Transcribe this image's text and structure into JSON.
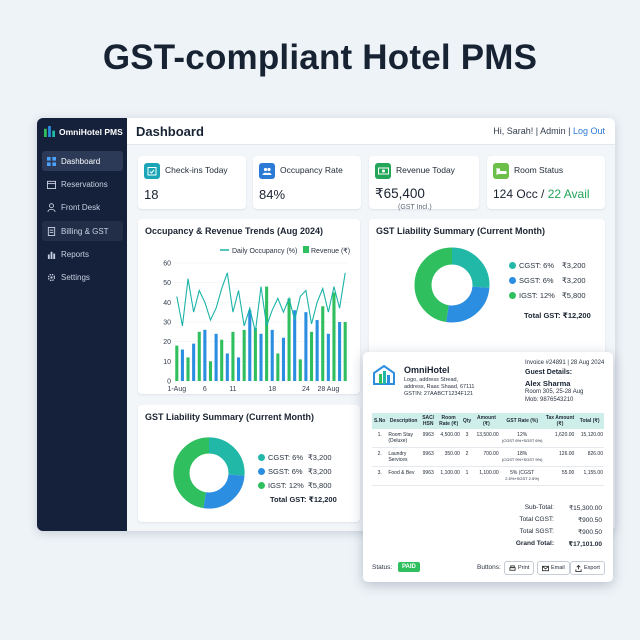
{
  "headline": "GST-compliant Hotel PMS",
  "sidebar": {
    "brand": "OmniHotel PMS",
    "items": [
      {
        "label": "Dashboard",
        "icon": "grid-icon"
      },
      {
        "label": "Reservations",
        "icon": "calendar-icon"
      },
      {
        "label": "Front Desk",
        "icon": "person-icon"
      },
      {
        "label": "Billing & GST",
        "icon": "document-icon"
      },
      {
        "label": "Reports",
        "icon": "bar-chart-icon"
      },
      {
        "label": "Settings",
        "icon": "gear-icon"
      }
    ]
  },
  "header": {
    "title": "Dashboard",
    "greeting": "Hi, Sarah!",
    "sep1": " | ",
    "role": "Admin",
    "sep2": " | ",
    "logout": "Log Out"
  },
  "kpis": [
    {
      "label": "Check-ins Today",
      "value": "18",
      "icon": "calendar-check-icon",
      "color": "#1aa6b7"
    },
    {
      "label": "Occupancy Rate",
      "value": "84%",
      "icon": "people-icon",
      "color": "#2b7ad6"
    },
    {
      "label": "Revenue Today",
      "value": "₹65,400",
      "sub": "(GST Incl.)",
      "icon": "cash-icon",
      "color": "#23a55a"
    },
    {
      "label": "Room Status",
      "value_occ": "124 Occ",
      "value_sep": " / ",
      "value_avail": "22 Avail",
      "icon": "bed-icon",
      "color": "#6cc04a"
    }
  ],
  "trend_card": {
    "title": "Occupancy & Revenue Trends (Aug 2024)"
  },
  "gst_card_top": {
    "title": "GST Liability Summary (Current Month)"
  },
  "gst_card_bottom": {
    "title": "GST Liability Summary (Current Month)"
  },
  "gst": {
    "rows": [
      {
        "label": "CGST: 6%",
        "value": "₹3,200",
        "color": "#22b8a8"
      },
      {
        "label": "SGST: 6%",
        "value": "₹3,200",
        "color": "#2b8ee0"
      },
      {
        "label": "IGST: 12%",
        "value": "₹5,800",
        "color": "#2fbf5e"
      }
    ],
    "total": "Total GST: ₹12,200"
  },
  "chart_data": {
    "type": "bar",
    "title": "Occupancy & Revenue Trends (Aug 2024)",
    "series": [
      {
        "name": "Daily Occupancy (%)",
        "type": "line",
        "color": "#1bb3a8",
        "values": [
          43,
          28,
          52,
          35,
          46,
          40,
          31,
          37,
          47,
          55,
          35,
          46,
          28,
          37,
          25,
          48,
          28,
          36,
          42,
          35,
          42,
          31,
          43,
          46,
          29,
          40,
          47,
          35,
          48,
          37,
          55
        ]
      },
      {
        "name": "Revenue (₹)",
        "type": "bar",
        "color": "#2fbf5e",
        "color_alt": "#2b8ee0",
        "values": [
          18,
          16,
          12,
          19,
          25,
          26,
          10,
          24,
          21,
          14,
          25,
          12,
          26,
          36,
          27,
          24,
          48,
          26,
          14,
          22,
          42,
          36,
          11,
          35,
          25,
          31,
          38,
          24,
          45,
          30,
          30
        ]
      }
    ],
    "x": [
      1,
      2,
      3,
      4,
      5,
      6,
      7,
      8,
      9,
      10,
      11,
      12,
      13,
      14,
      15,
      16,
      17,
      18,
      19,
      20,
      21,
      22,
      23,
      24,
      25,
      26,
      27,
      28,
      29,
      30,
      31
    ],
    "x_ticks": [
      "1-Aug",
      "6",
      "11",
      "18",
      "24",
      "28 Aug"
    ],
    "x_tick_days": [
      1,
      6,
      11,
      18,
      24,
      28
    ],
    "y_ticks": [
      "0",
      "10",
      "20",
      "30",
      "40",
      "50",
      "60"
    ],
    "ylim": [
      0,
      60
    ],
    "legend": "top"
  },
  "invoice": {
    "hotel": "OmniHotel",
    "addr1": "Logo, address Stread,",
    "addr2": "address, Raac Shaad, 67111",
    "gstin": "GSTIN: 27AABCT1234F121",
    "invoice_no": "Invoice #24891 | 28 Aug 2024",
    "guest_label": "Guest Details:",
    "guest_name": "Alex Sharma",
    "room": "Room 305, 25-28 Aug",
    "mob": "Mob: 9876543210",
    "columns": [
      "S.No",
      "Description",
      "SAC/ HSN",
      "Room Rate (₹)",
      "Qty",
      "Amount (₹)",
      "GST Rate (%)",
      "Tax Amount (₹)",
      "Total (₹)"
    ],
    "rows": [
      {
        "sno": "1.",
        "desc": "Room Stay (Deluxe)",
        "sac": "9963",
        "rate": "4,500.00",
        "qty": "3",
        "amount": "13,500.00",
        "gst": "12%",
        "gst_note": "(CGST 6%+SGST 6%)",
        "tax": "1,620.00",
        "total": "15,120.00"
      },
      {
        "sno": "2.",
        "desc": "Laundry Services",
        "sac": "9963",
        "rate": "350.00",
        "qty": "2",
        "amount": "700.00",
        "gst": "18%",
        "gst_note": "(CGST 9%+SGST 9%)",
        "tax": "126.00",
        "total": "826.00"
      },
      {
        "sno": "3.",
        "desc": "Food & Bev",
        "sac": "9963",
        "rate": "1,100.00",
        "qty": "1",
        "amount": "1,100.00",
        "gst": "5% (CGST",
        "gst_note": "2.5%+SGST 2.5%)",
        "tax": "55.00",
        "total": "1,155.00"
      }
    ],
    "totals": [
      {
        "label": "Sub-Total:",
        "value": "₹15,300.00"
      },
      {
        "label": "Total CGST:",
        "value": "₹900.50"
      },
      {
        "label": "Total SGST:",
        "value": "₹900.50"
      },
      {
        "label": "Grand Total:",
        "value": "₹17,101.00"
      }
    ],
    "status_label": "Status:",
    "status": "PAID",
    "buttons_label": "Buttons:",
    "buttons": [
      "Print",
      "Email",
      "Export"
    ]
  }
}
